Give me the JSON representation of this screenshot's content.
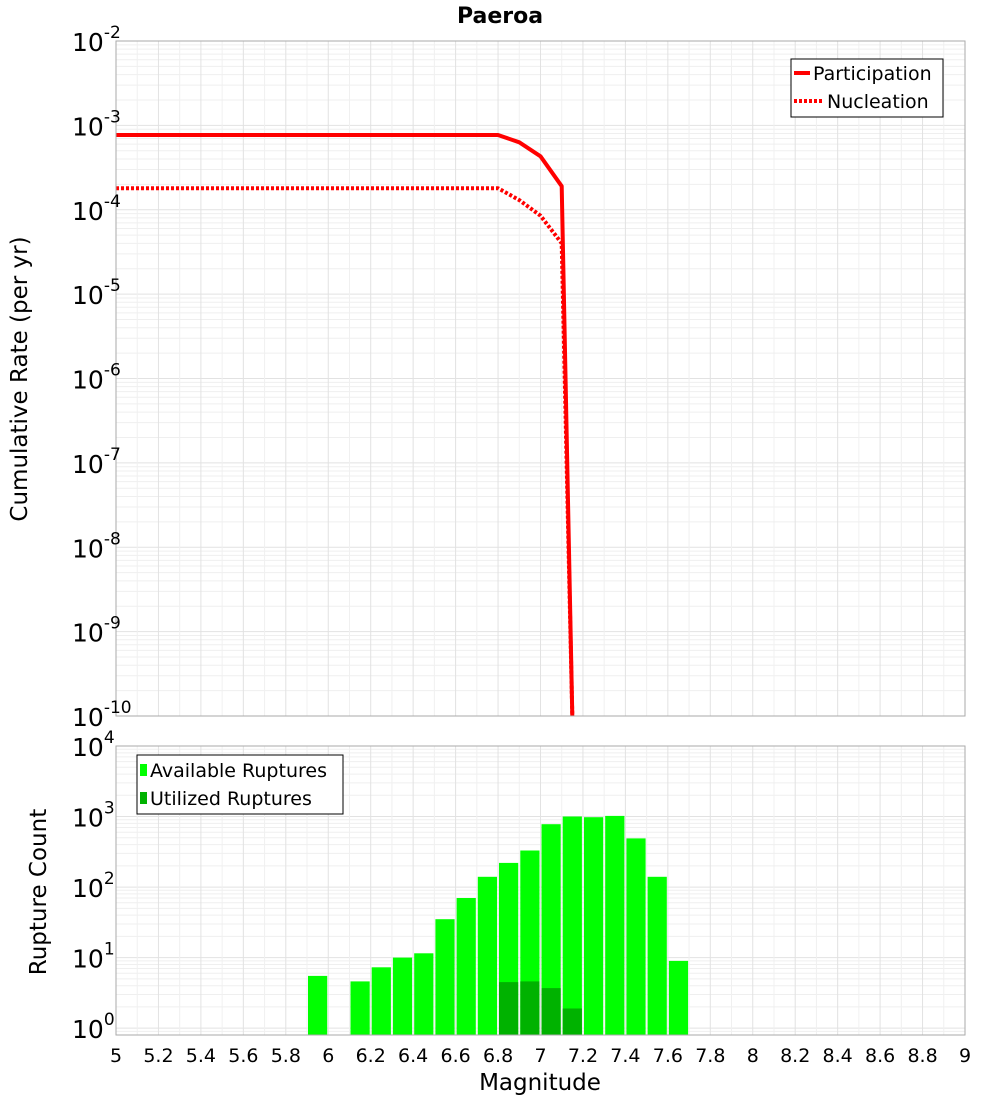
{
  "chart_data": [
    {
      "type": "line",
      "title": "Paeroa",
      "ylabel": "Cumulative Rate (per yr)",
      "xlim": [
        5,
        9
      ],
      "ylim": [
        1e-10,
        0.01
      ],
      "yscale": "log",
      "grid": true,
      "legend_position": "top-right",
      "y_ticks": [
        {
          "base": "10",
          "exp": "-2"
        },
        {
          "base": "10",
          "exp": "-3"
        },
        {
          "base": "10",
          "exp": "-4"
        },
        {
          "base": "10",
          "exp": "-5"
        },
        {
          "base": "10",
          "exp": "-6"
        },
        {
          "base": "10",
          "exp": "-7"
        },
        {
          "base": "10",
          "exp": "-8"
        },
        {
          "base": "10",
          "exp": "-9"
        },
        {
          "base": "10",
          "exp": "-10"
        }
      ],
      "series": [
        {
          "name": "Participation",
          "style": "solid",
          "color": "#ff0000",
          "x": [
            5.0,
            6.8,
            6.9,
            7.0,
            7.1,
            7.15
          ],
          "y": [
            0.00077,
            0.00077,
            0.00063,
            0.00043,
            0.00019,
            1e-10
          ]
        },
        {
          "name": "Nucleation",
          "style": "dotted",
          "color": "#ff0000",
          "x": [
            5.0,
            6.8,
            6.9,
            7.0,
            7.1,
            7.15
          ],
          "y": [
            0.00018,
            0.00018,
            0.00013,
            8.5e-05,
            4e-05,
            1e-10
          ]
        }
      ]
    },
    {
      "type": "bar",
      "xlabel": "Magnitude",
      "ylabel": "Rupture Count",
      "xlim": [
        5,
        9
      ],
      "ylim": [
        0.8,
        10000
      ],
      "yscale": "log",
      "grid": true,
      "legend_position": "top-left",
      "bin_width": 0.1,
      "x_ticks": [
        "5",
        "5.2",
        "5.4",
        "5.6",
        "5.8",
        "6",
        "6.2",
        "6.4",
        "6.6",
        "6.8",
        "7",
        "7.2",
        "7.4",
        "7.6",
        "7.8",
        "8",
        "8.2",
        "8.4",
        "8.6",
        "8.8",
        "9"
      ],
      "y_ticks": [
        {
          "base": "10",
          "exp": "4"
        },
        {
          "base": "10",
          "exp": "3"
        },
        {
          "base": "10",
          "exp": "2"
        },
        {
          "base": "10",
          "exp": "1"
        },
        {
          "base": "10",
          "exp": "0"
        }
      ],
      "series": [
        {
          "name": "Available Ruptures",
          "color": "#00ff00",
          "x": [
            5.95,
            6.15,
            6.25,
            6.35,
            6.45,
            6.55,
            6.65,
            6.75,
            6.85,
            6.95,
            7.05,
            7.15,
            7.25,
            7.35,
            7.45,
            7.55,
            7.65
          ],
          "values": [
            5.5,
            4.6,
            7.3,
            10,
            11.5,
            35,
            70,
            140,
            220,
            330,
            780,
            1000,
            980,
            1020,
            490,
            140,
            9
          ]
        },
        {
          "name": "Utilized Ruptures",
          "color": "#00b200",
          "x": [
            6.85,
            6.95,
            7.05,
            7.15
          ],
          "values": [
            4.5,
            4.6,
            3.7,
            1.9
          ]
        }
      ]
    }
  ]
}
